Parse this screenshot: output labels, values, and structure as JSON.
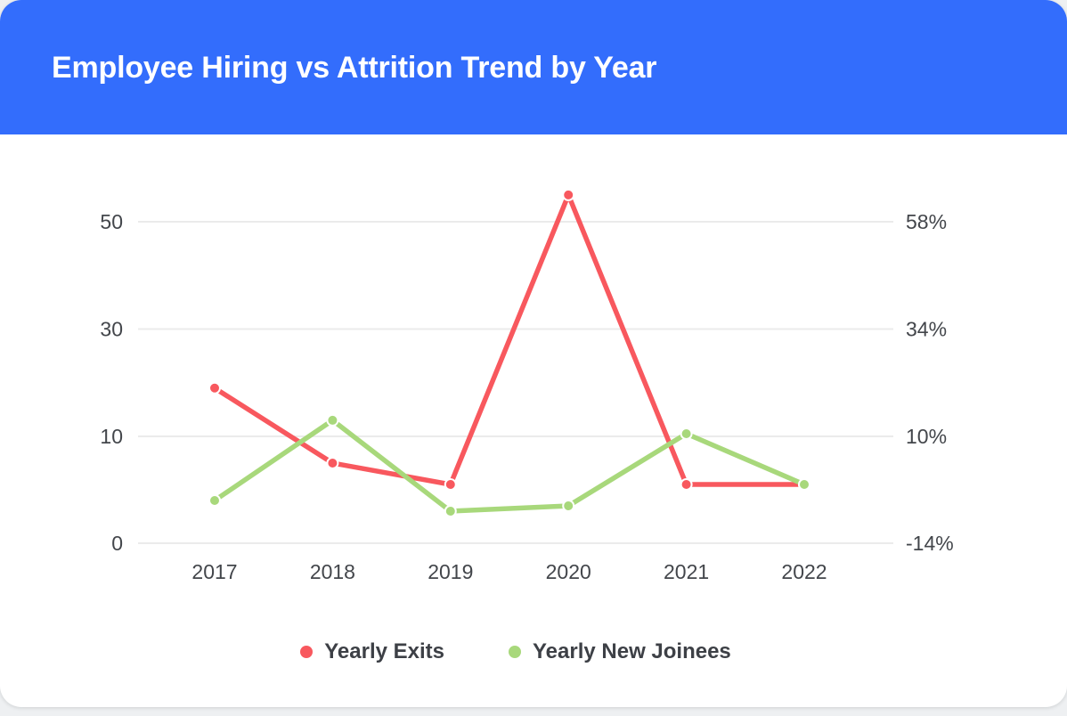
{
  "header": {
    "title": "Employee Hiring vs Attrition Trend by Year",
    "background_color": "#336DFC",
    "text_color": "#ffffff"
  },
  "chart_data": {
    "type": "line",
    "title": "Employee Hiring vs Attrition Trend by Year",
    "categories": [
      "2017",
      "2018",
      "2019",
      "2020",
      "2021",
      "2022"
    ],
    "series": [
      {
        "name": "Yearly Exits",
        "color": "#F8585E",
        "values": [
          19,
          7.5,
          5.5,
          55,
          5.5,
          5.5
        ]
      },
      {
        "name": "Yearly New Joinees",
        "color": "#A8D87B",
        "values": [
          4,
          13,
          3,
          3.5,
          10.5,
          5.5
        ]
      }
    ],
    "left_axis": {
      "ticks": [
        0,
        10,
        30,
        50
      ],
      "labels": [
        "0",
        "10",
        "30",
        "50"
      ]
    },
    "right_axis": {
      "labels": [
        "-14%",
        "10%",
        "34%",
        "58%"
      ]
    },
    "grid": true,
    "gridline_color": "#ebebeb",
    "axis_text_color": "#43464b",
    "legend_position": "bottom"
  },
  "legend": {
    "items": [
      {
        "label": "Yearly Exits",
        "color": "#F8585E"
      },
      {
        "label": "Yearly New Joinees",
        "color": "#A8D87B"
      }
    ]
  }
}
